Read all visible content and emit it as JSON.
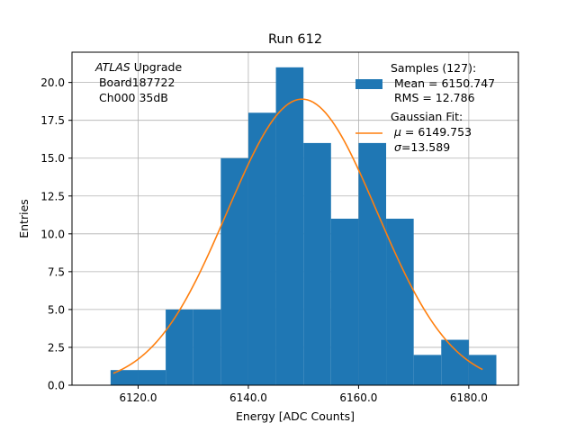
{
  "chart_data": {
    "type": "bar",
    "title": "Run 612",
    "xlabel": "Energy [ADC Counts]",
    "ylabel": "Entries",
    "xlim": [
      6108,
      6189
    ],
    "ylim": [
      0,
      22
    ],
    "grid": true,
    "legend_position": "top-right",
    "x_ticks": [
      6120,
      6140,
      6160,
      6180
    ],
    "x_tick_labels": [
      "6120.0",
      "6140.0",
      "6160.0",
      "6180.0"
    ],
    "y_ticks": [
      0,
      2.5,
      5,
      7.5,
      10,
      12.5,
      15,
      17.5,
      20
    ],
    "y_tick_labels": [
      "0.0",
      "2.5",
      "5.0",
      "7.5",
      "10.0",
      "12.5",
      "15.0",
      "17.5",
      "20.0"
    ],
    "bin_edges": [
      6115,
      6120,
      6125,
      6130,
      6135,
      6140,
      6145,
      6150,
      6155,
      6160,
      6165,
      6170,
      6175,
      6180,
      6185
    ],
    "counts": [
      1,
      1,
      5,
      5,
      15,
      18,
      21,
      16,
      11,
      16,
      11,
      2,
      3,
      2
    ],
    "fit": {
      "mean": 6149.753,
      "sigma": 13.589,
      "amplitude": 18.9,
      "x_range": [
        6115.5,
        6182.5
      ]
    },
    "annotation": {
      "italic": "ATLAS",
      "rest": " Upgrade",
      "line2": " Board187722",
      "line3": " Ch000 35dB"
    },
    "legend": {
      "hist_title": "Samples (127):",
      "hist_mean": " Mean = 6150.747",
      "hist_rms": " RMS = 12.786",
      "fit_title": "Gaussian Fit:",
      "fit_mu_symbol": "μ",
      "fit_mu_value": " = 6149.753",
      "fit_sigma_symbol": "σ",
      "fit_sigma_value": "=13.589"
    },
    "colors": {
      "bars": "#1f77b4",
      "fit_line": "#ff7f0e",
      "grid": "#b0b0b0"
    }
  }
}
